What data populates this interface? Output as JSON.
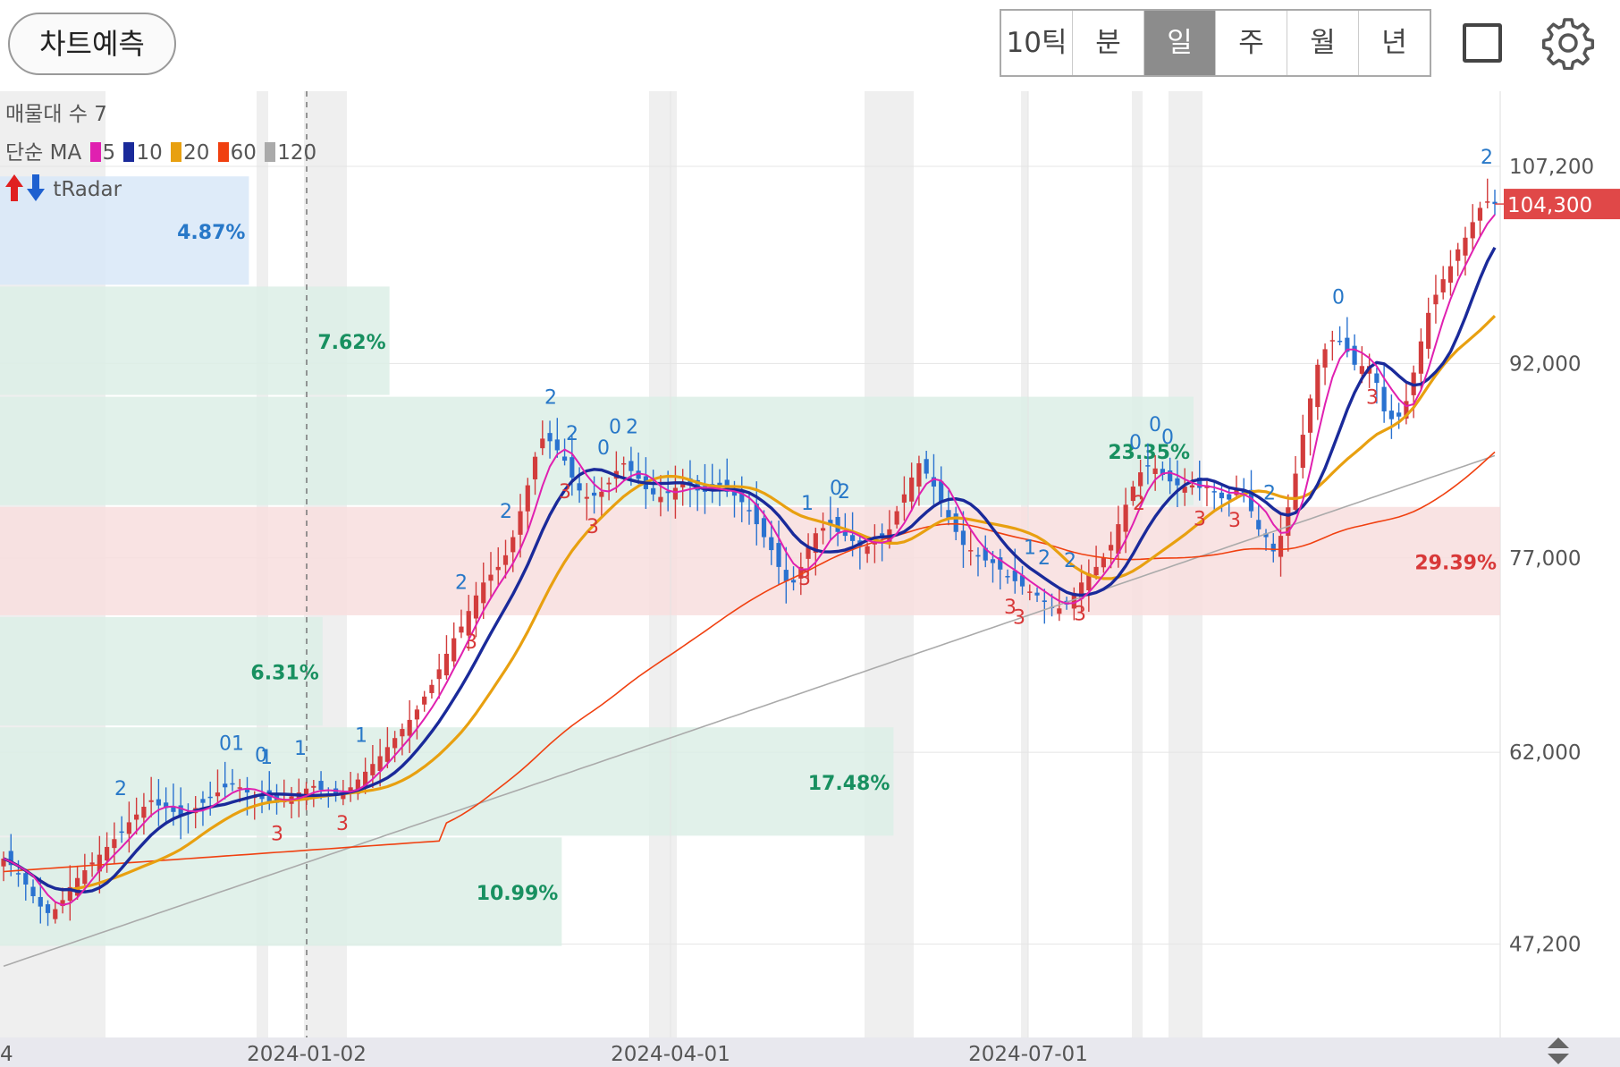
{
  "toolbar": {
    "predict_label": "차트예측",
    "periods": [
      "10틱",
      "분",
      "일",
      "주",
      "월",
      "년"
    ],
    "active_period": "일"
  },
  "overlay": {
    "volume_profile_label": "매물대 수 7",
    "ma_prefix": "단순 MA",
    "ma_items": [
      {
        "label": "5",
        "color": "#e020b0"
      },
      {
        "label": "10",
        "color": "#1a2a9a"
      },
      {
        "label": "20",
        "color": "#e8a010"
      },
      {
        "label": "60",
        "color": "#f04010"
      },
      {
        "label": "120",
        "color": "#aaaaaa"
      }
    ],
    "tradar_label": "tRadar"
  },
  "chart_data": {
    "type": "candlestick",
    "y_axis": {
      "ticks": [
        "107,200",
        "92,000",
        "77,000",
        "62,000",
        "47,200"
      ],
      "tick_values": [
        107200,
        92000,
        77000,
        62000,
        47200
      ],
      "range": [
        40000,
        113000
      ]
    },
    "x_axis": {
      "ticks": [
        "4",
        "2024-01-02",
        "2024-04-01",
        "2024-07-01"
      ]
    },
    "current_price": {
      "label": "104,300",
      "value": 104300,
      "color": "#e04848"
    },
    "volume_profile": [
      {
        "label": "4.87%",
        "low": 98000,
        "high": 106500,
        "width_pct": 4.87,
        "color": "#2878c8",
        "fill": "#d8e8f8"
      },
      {
        "label": "7.62%",
        "low": 89500,
        "high": 98000,
        "width_pct": 7.62,
        "color": "#189060",
        "fill": "#dcefe6"
      },
      {
        "label": "23.35%",
        "low": 81000,
        "high": 89500,
        "width_pct": 23.35,
        "color": "#189060",
        "fill": "#dcefe6"
      },
      {
        "label": "29.39%",
        "low": 72500,
        "high": 81000,
        "width_pct": 29.39,
        "color": "#d83838",
        "fill": "#f8dede"
      },
      {
        "label": "6.31%",
        "low": 64000,
        "high": 72500,
        "width_pct": 6.31,
        "color": "#189060",
        "fill": "#dcefe6"
      },
      {
        "label": "17.48%",
        "low": 55500,
        "high": 64000,
        "width_pct": 17.48,
        "color": "#189060",
        "fill": "#dcefe6"
      },
      {
        "label": "10.99%",
        "low": 47000,
        "high": 55500,
        "width_pct": 10.99,
        "color": "#189060",
        "fill": "#dcefe6"
      }
    ],
    "candles_close": [
      53800,
      53300,
      52600,
      51800,
      50900,
      50100,
      49600,
      49900,
      50600,
      51600,
      52300,
      52900,
      53500,
      54100,
      54700,
      55300,
      55800,
      56600,
      57200,
      57800,
      58300,
      57900,
      57700,
      57400,
      57100,
      57300,
      57700,
      58100,
      58500,
      58900,
      59300,
      59600,
      59300,
      58900,
      58600,
      58400,
      58200,
      58100,
      58400,
      58600,
      58900,
      59200,
      59400,
      59100,
      58800,
      58700,
      58900,
      59300,
      59900,
      60500,
      61100,
      61700,
      62400,
      63100,
      63800,
      64500,
      65300,
      66300,
      67200,
      68400,
      69600,
      70800,
      71700,
      72900,
      74100,
      75100,
      75700,
      76300,
      77200,
      78600,
      80600,
      82600,
      84800,
      86200,
      86000,
      85300,
      84500,
      83200,
      82200,
      81700,
      81800,
      82100,
      82800,
      83700,
      84300,
      83700,
      83100,
      82300,
      81900,
      81700,
      82000,
      82400,
      82800,
      82600,
      82200,
      82100,
      82300,
      82400,
      82100,
      81800,
      81300,
      80600,
      79600,
      78600,
      77600,
      76300,
      75200,
      75100,
      76300,
      77800,
      78900,
      79300,
      79500,
      79000,
      78700,
      78300,
      77900,
      77900,
      78200,
      78500,
      79200,
      80600,
      81900,
      83200,
      84300,
      83500,
      82500,
      81300,
      80100,
      79000,
      78000,
      77600,
      77100,
      76800,
      76600,
      76100,
      75600,
      75200,
      74800,
      74400,
      74100,
      73600,
      73200,
      73100,
      73400,
      74300,
      75100,
      75800,
      76300,
      77000,
      78000,
      79600,
      81100,
      82500,
      83600,
      84100,
      83900,
      83400,
      82900,
      82600,
      82500,
      82600,
      82400,
      82600,
      82100,
      81600,
      81500,
      82300,
      82000,
      80600,
      79200,
      78600,
      77500,
      78700,
      80900,
      83500,
      86500,
      89300,
      91900,
      93100,
      93800,
      93700,
      92900,
      91900,
      91800,
      91800,
      90500,
      88300,
      87700,
      87900,
      89100,
      91300,
      93700,
      95900,
      97300,
      98500,
      99500,
      100800,
      101700,
      102900,
      104000,
      104500,
      104300
    ],
    "series": [
      {
        "name": "5",
        "color": "#e020b0"
      },
      {
        "name": "10",
        "color": "#1a2a9a"
      },
      {
        "name": "20",
        "color": "#e8a010"
      },
      {
        "name": "60",
        "color": "#f04010"
      },
      {
        "name": "120",
        "color": "#aaaaaa"
      }
    ],
    "annotations": [
      {
        "text": "2",
        "color": "#2878c8"
      },
      {
        "text": "1",
        "color": "#2878c8"
      },
      {
        "text": "0",
        "color": "#2878c8"
      },
      {
        "text": "3",
        "color": "#d83838"
      }
    ]
  }
}
